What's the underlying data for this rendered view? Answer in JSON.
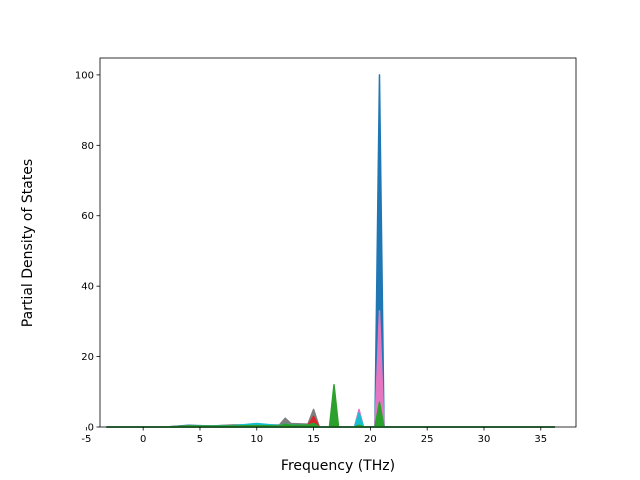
{
  "chart_data": {
    "type": "area",
    "xlabel": "Frequency (THz)",
    "ylabel": "Partial Density of States",
    "x": [
      -3.2,
      2,
      4,
      6,
      8,
      10,
      12,
      12.5,
      13,
      14.5,
      15,
      15.5,
      16.4,
      16.8,
      17.2,
      18.6,
      19.0,
      19.4,
      20.4,
      20.8,
      21.2,
      25,
      30,
      36.2
    ],
    "series": [
      {
        "color": "#1f77b4",
        "values": [
          0,
          0,
          0.5,
          0.3,
          0.5,
          0.6,
          0.5,
          1,
          0.8,
          0.6,
          1.5,
          0,
          0,
          0.5,
          0,
          0,
          1,
          0,
          0,
          100,
          0,
          0,
          0,
          0
        ]
      },
      {
        "color": "#e377c2",
        "values": [
          0,
          0,
          0.2,
          0.2,
          0.3,
          0.3,
          0.3,
          0.5,
          0.4,
          0.4,
          1,
          0,
          0,
          0.3,
          0,
          0,
          5,
          0,
          0,
          33,
          0,
          0,
          0,
          0
        ]
      },
      {
        "color": "#7f7f7f",
        "values": [
          0,
          0,
          0.4,
          0.3,
          0.6,
          0.5,
          0.6,
          2.5,
          1,
          0.8,
          5,
          0,
          0,
          0.5,
          0,
          0,
          0.5,
          0,
          0,
          2,
          0,
          0,
          0,
          0
        ]
      },
      {
        "color": "#d62728",
        "values": [
          0,
          0,
          0.2,
          0.2,
          0.3,
          0.3,
          0.3,
          0.6,
          0.5,
          0.5,
          3,
          0,
          0,
          0.4,
          0,
          0,
          0.5,
          0,
          0,
          3,
          0,
          0,
          0,
          0
        ]
      },
      {
        "color": "#17becf",
        "values": [
          0,
          0,
          0.3,
          0.3,
          0.4,
          1,
          0.4,
          0.8,
          0.6,
          0.5,
          1,
          0,
          0,
          0.4,
          0,
          0,
          4,
          0,
          0,
          2,
          0,
          0,
          0,
          0
        ]
      },
      {
        "color": "#2ca02c",
        "values": [
          0,
          0,
          0.3,
          0.2,
          0.3,
          0.4,
          0.3,
          0.8,
          0.5,
          0.5,
          1,
          0,
          0,
          12,
          0,
          0,
          0.5,
          0,
          0,
          7,
          0,
          0,
          0,
          0
        ]
      }
    ],
    "xlim": [
      -3.8,
      38.1
    ],
    "ylim": [
      0,
      104.8
    ],
    "xticks": [
      -5,
      0,
      5,
      10,
      15,
      20,
      25,
      30,
      35
    ],
    "yticks": [
      0,
      20,
      40,
      60,
      80,
      100
    ]
  }
}
